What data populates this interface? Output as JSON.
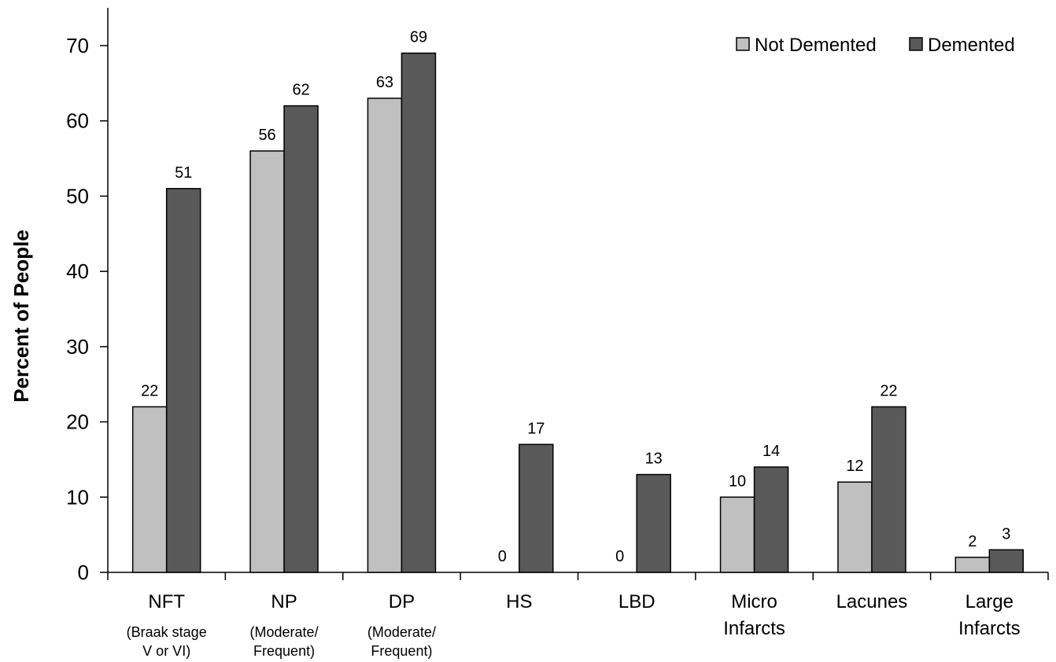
{
  "chart_data": {
    "type": "bar",
    "title": "",
    "xlabel": "",
    "ylabel": "Percent of People",
    "ylim": [
      0,
      70
    ],
    "yticks": [
      0,
      10,
      20,
      30,
      40,
      50,
      60,
      70
    ],
    "grid": false,
    "legend_position": "top-right",
    "categories": [
      "NFT",
      "NP",
      "DP",
      "HS",
      "LBD",
      "Micro Infarcts",
      "Lacunes",
      "Large Infarcts"
    ],
    "category_lines": [
      [
        "NFT"
      ],
      [
        "NP"
      ],
      [
        "DP"
      ],
      [
        "HS"
      ],
      [
        "LBD"
      ],
      [
        "Micro",
        "Infarcts"
      ],
      [
        "Lacunes"
      ],
      [
        "Large",
        "Infarcts"
      ]
    ],
    "category_sublabels": [
      [
        "(Braak stage",
        "V or VI)"
      ],
      [
        "(Moderate/",
        "Frequent)"
      ],
      [
        "(Moderate/",
        "Frequent)"
      ],
      [],
      [],
      [],
      [],
      []
    ],
    "series": [
      {
        "name": "Not Demented",
        "color": "#c0c0c0",
        "values": [
          22,
          56,
          63,
          0,
          0,
          10,
          12,
          2
        ]
      },
      {
        "name": "Demented",
        "color": "#595959",
        "values": [
          51,
          62,
          69,
          17,
          13,
          14,
          22,
          3
        ]
      }
    ]
  }
}
